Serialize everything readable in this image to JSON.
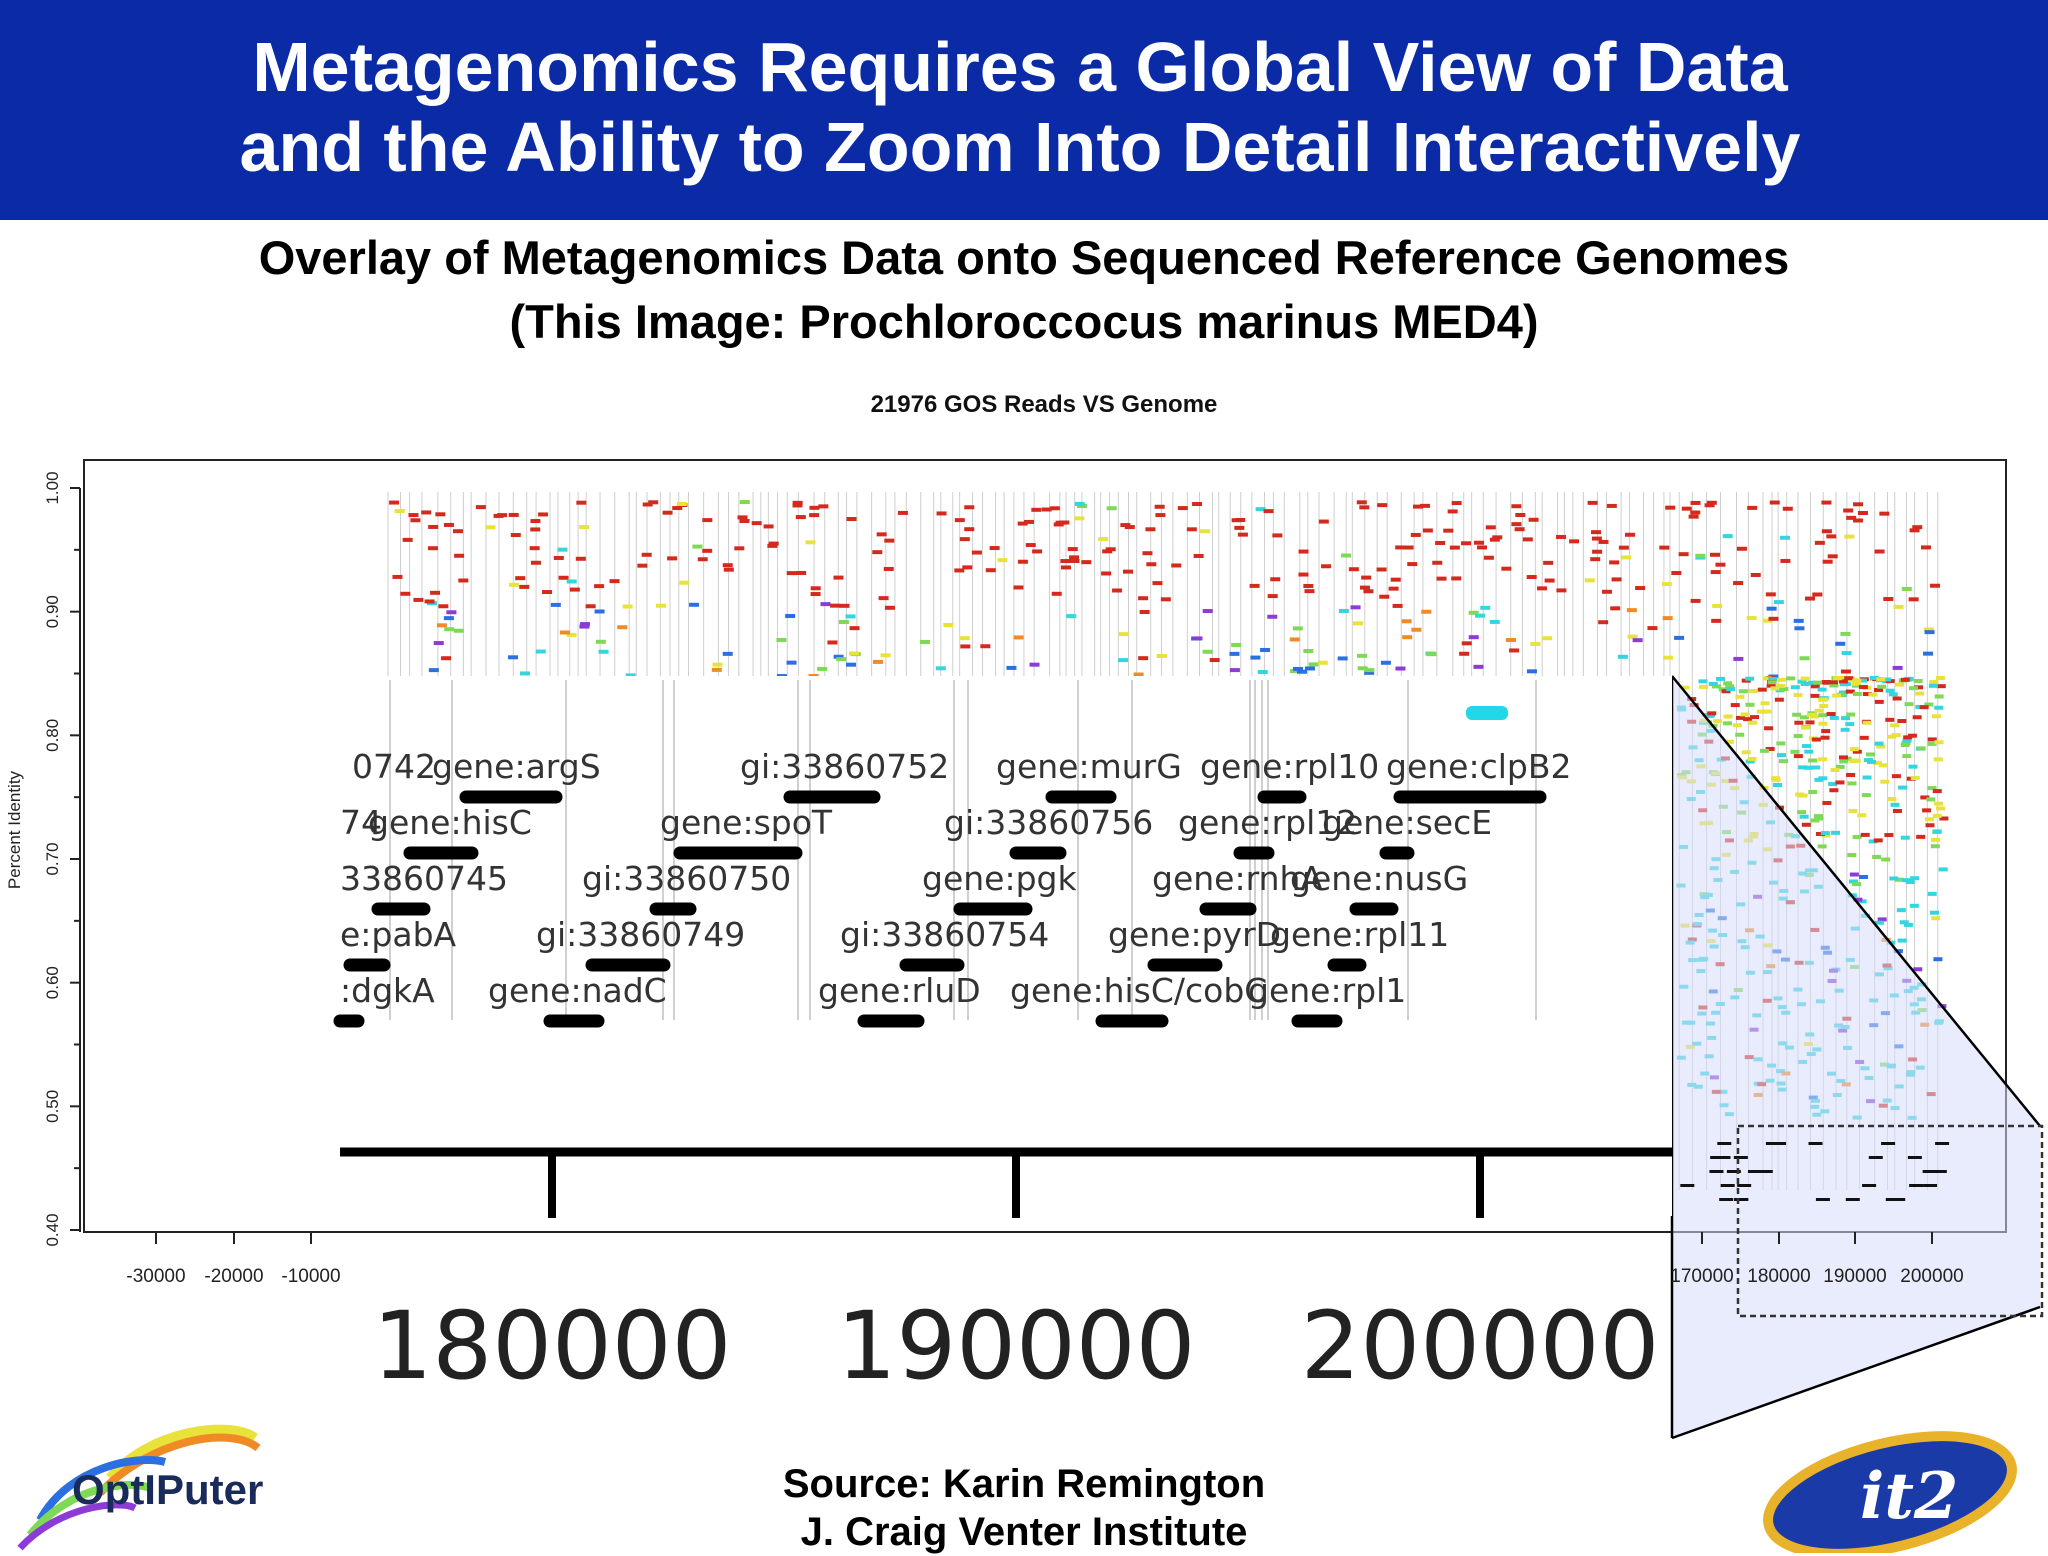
{
  "slide": {
    "title_line1": "Metagenomics Requires a Global View of Data",
    "title_line2": "and the Ability to Zoom Into Detail Interactively",
    "subtitle_line1": "Overlay of Metagenomics Data onto Sequenced Reference Genomes",
    "subtitle_line2": "(This Image: Prochloroccocus marinus MED4)",
    "source_line1": "Source: Karin Remington",
    "source_line2": "J. Craig Venter Institute",
    "logo_left": "OptIPuter",
    "logo_right": "it2"
  },
  "colors": {
    "header_bg": "#0a2aa6",
    "zoom_highlight": "#d6dcfa",
    "read_red": "#d42a1e",
    "read_green": "#7ed957",
    "read_cyan": "#33d6e0",
    "read_blue": "#2b6fe0",
    "read_yellow": "#e8e23a",
    "read_purple": "#8c3bd6",
    "read_orange": "#f08a24"
  },
  "chart_data": [
    {
      "type": "scatter",
      "title": "21976 GOS Reads VS Genome",
      "xlabel": "",
      "ylabel": "Percent Identity",
      "ylim": [
        0.4,
        1.0
      ],
      "y_ticks": [
        "0.40",
        "0.50",
        "0.60",
        "0.70",
        "0.80",
        "0.90",
        "1.00"
      ],
      "x_ticks_left": [
        "-30000",
        "-20000",
        "-10000"
      ],
      "x_ticks_right": [
        "170000",
        "180000",
        "190000",
        "200000"
      ]
    },
    {
      "type": "table",
      "x_ticks": [
        "180000",
        "190000",
        "200000"
      ],
      "genes": [
        {
          "label": "0742",
          "row": 1,
          "x": 352
        },
        {
          "label": "gene:argS",
          "row": 1,
          "x": 432
        },
        {
          "label": "gi:33860752",
          "row": 1,
          "x": 740
        },
        {
          "label": "gene:murG",
          "row": 1,
          "x": 996
        },
        {
          "label": "gene:rpl10",
          "row": 1,
          "x": 1200
        },
        {
          "label": "gene:clpB2",
          "row": 1,
          "x": 1386
        },
        {
          "label": "74",
          "row": 2,
          "x": 340
        },
        {
          "label": "gene:hisC",
          "row": 2,
          "x": 368
        },
        {
          "label": "gene:spoT",
          "row": 2,
          "x": 660
        },
        {
          "label": "gi:33860756",
          "row": 2,
          "x": 944
        },
        {
          "label": "gene:rpl12",
          "row": 2,
          "x": 1178
        },
        {
          "label": "gene:secE",
          "row": 2,
          "x": 1322
        },
        {
          "label": "33860745",
          "row": 3,
          "x": 340
        },
        {
          "label": "gi:33860750",
          "row": 3,
          "x": 582
        },
        {
          "label": "gene:pgk",
          "row": 3,
          "x": 922
        },
        {
          "label": "gene:rnhA",
          "row": 3,
          "x": 1152
        },
        {
          "label": "gene:nusG",
          "row": 3,
          "x": 1290
        },
        {
          "label": "e:pabA",
          "row": 4,
          "x": 340
        },
        {
          "label": "gi:33860749",
          "row": 4,
          "x": 536
        },
        {
          "label": "gi:33860754",
          "row": 4,
          "x": 840
        },
        {
          "label": "gene:pyrD",
          "row": 4,
          "x": 1108
        },
        {
          "label": "gene:rpl11",
          "row": 4,
          "x": 1270
        },
        {
          "label": ":dgkA",
          "row": 5,
          "x": 340
        },
        {
          "label": "gene:nadC",
          "row": 5,
          "x": 488
        },
        {
          "label": "gene:rluD",
          "row": 5,
          "x": 818
        },
        {
          "label": "gene:hisC/cobC",
          "row": 5,
          "x": 1010
        },
        {
          "label": "gene:rpl1",
          "row": 5,
          "x": 1248
        }
      ]
    }
  ]
}
